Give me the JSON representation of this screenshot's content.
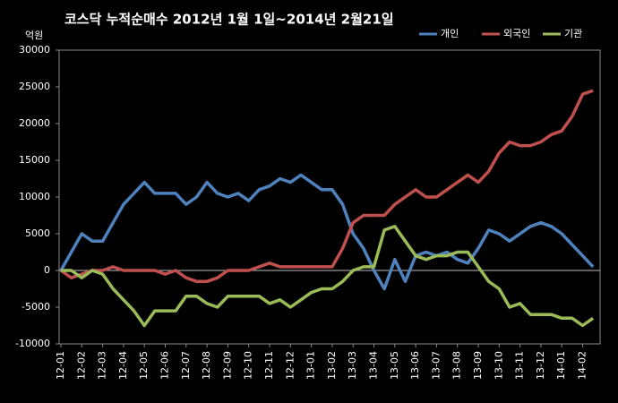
{
  "chart_data": {
    "type": "line",
    "title": "코스닥 누적순매수 2012년 1월 1일~2014년 2월21일",
    "y_label": "억원",
    "categories": [
      "12-01",
      null,
      "12-02",
      null,
      "12-03",
      null,
      "12-04",
      null,
      "12-05",
      null,
      "12-06",
      null,
      "12-07",
      null,
      "12-08",
      null,
      "12-09",
      null,
      "12-10",
      null,
      "12-11",
      null,
      "12-12",
      null,
      "13-01",
      null,
      "13-02",
      null,
      "13-03",
      null,
      "13-04",
      null,
      "13-05",
      null,
      "13-06",
      null,
      "13-07",
      null,
      "13-08",
      null,
      "13-09",
      null,
      "13-10",
      null,
      "13-11",
      null,
      "13-12",
      null,
      "14-01",
      null,
      "14-02",
      null
    ],
    "series": [
      {
        "name": "개인",
        "color": "#4f81bd",
        "values": [
          0,
          2500,
          5000,
          4000,
          4000,
          6500,
          9000,
          10500,
          12000,
          10500,
          10500,
          10500,
          9000,
          10000,
          12000,
          10500,
          10000,
          10500,
          9500,
          11000,
          11500,
          12500,
          12000,
          13000,
          12000,
          11000,
          11000,
          9000,
          5000,
          3000,
          0,
          -2500,
          1500,
          -1500,
          2000,
          2500,
          2000,
          2500,
          1500,
          1000,
          3000,
          5500,
          5000,
          4000,
          5000,
          6000,
          6500,
          6000,
          5000,
          3500,
          2000,
          500
        ]
      },
      {
        "name": "외국인",
        "color": "#c0504d",
        "values": [
          0,
          -1000,
          -500,
          0,
          0,
          500,
          0,
          0,
          0,
          0,
          -500,
          0,
          -1000,
          -1500,
          -1500,
          -1000,
          0,
          0,
          0,
          500,
          1000,
          500,
          500,
          500,
          500,
          500,
          500,
          3000,
          6500,
          7500,
          7500,
          7500,
          9000,
          10000,
          11000,
          10000,
          10000,
          11000,
          12000,
          13000,
          12000,
          13500,
          16000,
          17500,
          17000,
          17000,
          17500,
          18500,
          19000,
          21000,
          24000,
          24500
        ]
      },
      {
        "name": "기관",
        "color": "#9bbb59",
        "values": [
          0,
          0,
          -1000,
          0,
          -500,
          -2500,
          -4000,
          -5500,
          -7500,
          -5500,
          -5500,
          -5500,
          -3500,
          -3500,
          -4500,
          -5000,
          -3500,
          -3500,
          -3500,
          -3500,
          -4500,
          -4000,
          -5000,
          -4000,
          -3000,
          -2500,
          -2500,
          -1500,
          0,
          500,
          500,
          5500,
          6000,
          4000,
          2000,
          1500,
          2000,
          2000,
          2500,
          2500,
          500,
          -1500,
          -2500,
          -5000,
          -4500,
          -6000,
          -6000,
          -6000,
          -6500,
          -6500,
          -7500,
          -6500
        ]
      }
    ],
    "ylim": [
      -10000,
      30000
    ],
    "yticks": [
      -10000,
      -5000,
      0,
      5000,
      10000,
      15000,
      20000,
      25000,
      30000
    ],
    "legend": "top-right"
  }
}
